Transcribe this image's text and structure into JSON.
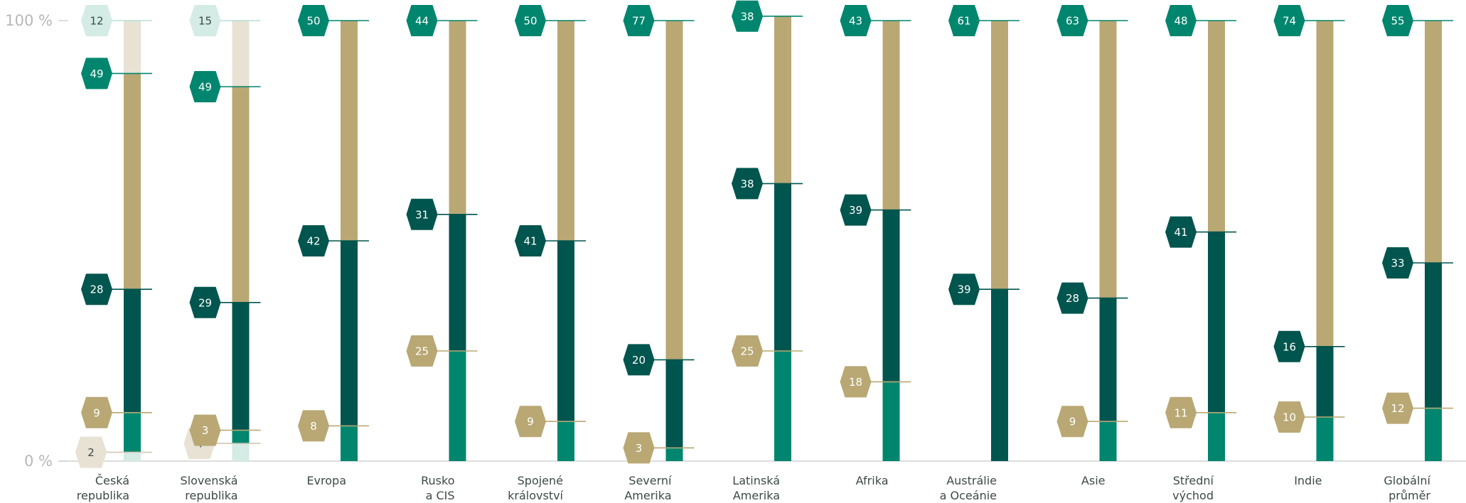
{
  "colors": {
    "series_1": "#d4ebe6",
    "series_2": "#00866e",
    "series_3": "#00554e",
    "series_4": "#b9a874",
    "series_5": "#e7e2d4",
    "axis": "#cfd2d0",
    "tick_text": "#b5b8b6",
    "category_text": "#3d4a47"
  },
  "chart_data": {
    "type": "bar",
    "stacked": true,
    "ylim": [
      0,
      100
    ],
    "yticks": [
      "0 %",
      "100 %"
    ],
    "categories": [
      [
        "Česká",
        "republika"
      ],
      [
        "Slovenská",
        "republika"
      ],
      [
        "Evropa"
      ],
      [
        "Rusko",
        "a CIS"
      ],
      [
        "Spojené",
        "království"
      ],
      [
        "Severní",
        "Amerika"
      ],
      [
        "Latinská",
        "Amerika"
      ],
      [
        "Afrika"
      ],
      [
        "Austrálie",
        "a Oceánie"
      ],
      [
        "Asie"
      ],
      [
        "Střední",
        "východ"
      ],
      [
        "Indie"
      ],
      [
        "Globální",
        "průměr"
      ]
    ],
    "series": [
      {
        "values": [
          2,
          4,
          0,
          0,
          0,
          0,
          0,
          0,
          0,
          0,
          0,
          0,
          0
        ]
      },
      {
        "values": [
          9,
          3,
          8,
          25,
          9,
          3,
          25,
          18,
          0,
          9,
          11,
          10,
          12
        ]
      },
      {
        "values": [
          28,
          29,
          42,
          31,
          41,
          20,
          38,
          39,
          39,
          28,
          41,
          16,
          33
        ]
      },
      {
        "values": [
          49,
          49,
          50,
          44,
          50,
          77,
          38,
          43,
          61,
          63,
          48,
          74,
          55
        ]
      },
      {
        "values": [
          12,
          15,
          0,
          0,
          0,
          0,
          0,
          0,
          0,
          0,
          0,
          0,
          0
        ]
      }
    ],
    "labels": [
      [
        "2",
        "9",
        "28",
        "49",
        "12"
      ],
      [
        "4",
        "3",
        "29",
        "49",
        "15"
      ],
      [
        "",
        "8",
        "42",
        "50",
        ""
      ],
      [
        "",
        "25",
        "31",
        "44",
        ""
      ],
      [
        "",
        "9",
        "41",
        "50",
        ""
      ],
      [
        "",
        "3",
        "20",
        "77",
        ""
      ],
      [
        "",
        "25",
        "38",
        "38",
        ""
      ],
      [
        "",
        "18",
        "39",
        "43",
        ""
      ],
      [
        "",
        "",
        "39",
        "61",
        ""
      ],
      [
        "",
        "9",
        "28",
        "63",
        ""
      ],
      [
        "",
        "11",
        "41",
        "48",
        ""
      ],
      [
        "",
        "10",
        "16",
        "74",
        ""
      ],
      [
        "",
        "12",
        "33",
        "55",
        ""
      ]
    ]
  }
}
